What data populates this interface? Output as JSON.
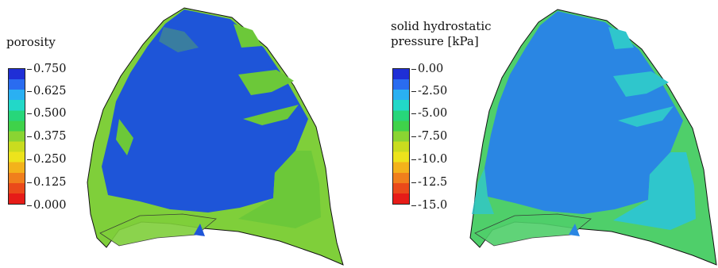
{
  "panels": [
    {
      "colorbar": {
        "title_lines": [
          "porosity"
        ],
        "ticks": [
          "0.750",
          "0.625",
          "0.500",
          "0.375",
          "0.250",
          "0.125",
          "0.000"
        ],
        "colors_top_to_bottom": [
          "#1f2fd6",
          "#2a6cf0",
          "#2ab0f2",
          "#22d8c8",
          "#27d67a",
          "#3fd24a",
          "#8ad432",
          "#c9dc1f",
          "#ede31c",
          "#f3b21b",
          "#f07f1c",
          "#ea4a1a",
          "#e61c18"
        ]
      },
      "surface": {
        "base_color": "#1e55d8",
        "patch_color": "#6cc839",
        "rim_color": "#7fcf3a"
      }
    },
    {
      "colorbar": {
        "title_lines": [
          "solid hydrostatic",
          "pressure [kPa]"
        ],
        "ticks": [
          "0.00",
          "-2.50",
          "-5.00",
          "-7.50",
          "-10.0",
          "-12.5",
          "-15.0"
        ],
        "colors_top_to_bottom": [
          "#1f2fd6",
          "#2a6cf0",
          "#2ab0f2",
          "#22d8c8",
          "#27d67a",
          "#3fd24a",
          "#8ad432",
          "#c9dc1f",
          "#ede31c",
          "#f3b21b",
          "#f07f1c",
          "#ea4a1a",
          "#e61c18"
        ]
      },
      "surface": {
        "base_color": "#2a86e3",
        "patch_color": "#2fc6cc",
        "rim_color": "#4fcf6a"
      }
    }
  ]
}
